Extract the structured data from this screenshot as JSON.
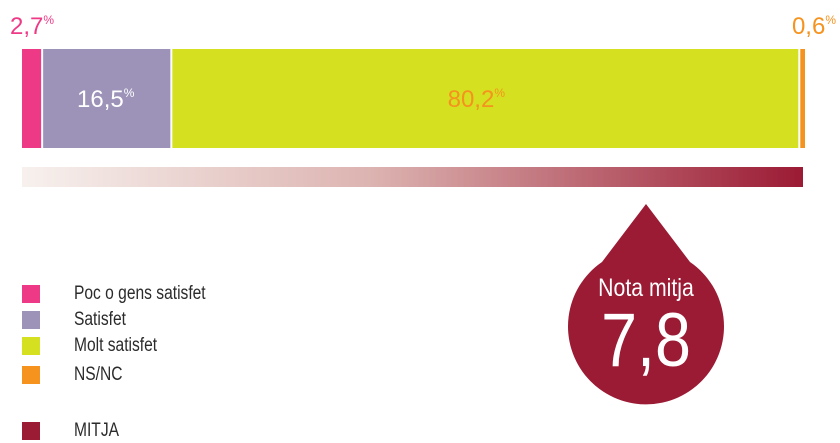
{
  "chart_data": {
    "type": "bar",
    "orientation": "horizontal-stacked-100",
    "series": [
      {
        "name": "Poc o gens satisfet",
        "value": 2.7,
        "label": "2,7",
        "color": "#ee3a86"
      },
      {
        "name": "Satisfet",
        "value": 16.5,
        "label": "16,5",
        "color": "#9d93b9"
      },
      {
        "name": "Molt satisfet",
        "value": 80.2,
        "label": "80,2",
        "color": "#d5e021"
      },
      {
        "name": "NS/NC",
        "value": 0.6,
        "label": "0,6",
        "color": "#f6921e"
      }
    ],
    "percent_sign": "%",
    "legend": [
      {
        "label": "Poc o gens satisfet",
        "color": "#ee3a86"
      },
      {
        "label": "Satisfet",
        "color": "#9d93b9"
      },
      {
        "label": "Molt satisfet",
        "color": "#d5e021"
      },
      {
        "label": "NS/NC",
        "color": "#f6921e"
      },
      {
        "label": "MITJA",
        "color": "#9b1a34"
      }
    ],
    "legend_position": "bottom-left",
    "mean": {
      "title": "Nota mitja",
      "value": 7.8,
      "display": "7,8",
      "color": "#9b1a34"
    },
    "scale_gradient": {
      "from": "#f7f1ee",
      "to": "#9b1a34"
    }
  }
}
